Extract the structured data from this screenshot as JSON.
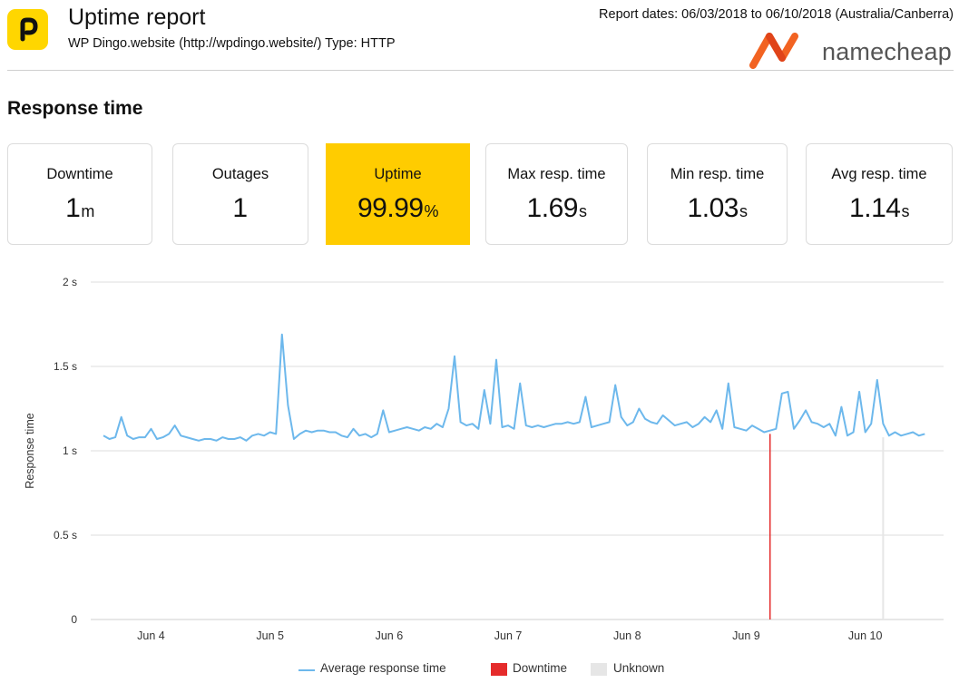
{
  "header": {
    "title": "Uptime report",
    "subtitle": "WP Dingo.website (http://wpdingo.website/) Type: HTTP",
    "report_dates": "Report dates: 06/03/2018 to 06/10/2018 (Australia/Canberra)",
    "brand_text": "namecheap"
  },
  "section": {
    "title": "Response time"
  },
  "stats": [
    {
      "label": "Downtime",
      "value": "1",
      "unit": "m"
    },
    {
      "label": "Outages",
      "value": "1",
      "unit": ""
    },
    {
      "label": "Uptime",
      "value": "99.99",
      "unit": "%"
    },
    {
      "label": "Max resp. time",
      "value": "1.69",
      "unit": "s"
    },
    {
      "label": "Min resp. time",
      "value": "1.03",
      "unit": "s"
    },
    {
      "label": "Avg resp. time",
      "value": "1.14",
      "unit": "s"
    }
  ],
  "colors": {
    "line": "#6db8ec",
    "downtime": "#e52b2b",
    "unknown": "#e6e6e6",
    "highlight": "#ffcc00",
    "grid": "#dddddd"
  },
  "chart_data": {
    "type": "line",
    "ylabel": "Response time",
    "y_ticks": [
      0,
      0.5,
      1,
      1.5,
      2
    ],
    "y_tick_labels": [
      "0",
      "0.5 s",
      "1 s",
      "1.5 s",
      "2 s"
    ],
    "ylim": [
      0,
      2
    ],
    "xlim": [
      3.55,
      10.55
    ],
    "x_ticks": [
      4,
      5,
      6,
      7,
      8,
      9,
      10
    ],
    "x_tick_labels": [
      "Jun 4",
      "Jun 5",
      "Jun 6",
      "Jun 7",
      "Jun 8",
      "Jun 9",
      "Jun 10"
    ],
    "grid": true,
    "legend_position": "bottom-center",
    "legend": [
      "Average response time",
      "Downtime",
      "Unknown"
    ],
    "downtime_x": [
      9.2
    ],
    "unknown_x": [
      10.15
    ],
    "series": [
      {
        "name": "Average response time",
        "x": [
          3.6,
          3.65,
          3.7,
          3.75,
          3.8,
          3.85,
          3.9,
          3.95,
          4.0,
          4.05,
          4.1,
          4.15,
          4.2,
          4.25,
          4.3,
          4.35,
          4.4,
          4.45,
          4.5,
          4.55,
          4.6,
          4.65,
          4.7,
          4.75,
          4.8,
          4.85,
          4.9,
          4.95,
          5.0,
          5.05,
          5.1,
          5.15,
          5.2,
          5.25,
          5.3,
          5.35,
          5.4,
          5.45,
          5.5,
          5.55,
          5.6,
          5.65,
          5.7,
          5.75,
          5.8,
          5.85,
          5.9,
          5.95,
          6.0,
          6.05,
          6.1,
          6.15,
          6.2,
          6.25,
          6.3,
          6.35,
          6.4,
          6.45,
          6.5,
          6.55,
          6.6,
          6.65,
          6.7,
          6.75,
          6.8,
          6.85,
          6.9,
          6.95,
          7.0,
          7.05,
          7.1,
          7.15,
          7.2,
          7.25,
          7.3,
          7.35,
          7.4,
          7.45,
          7.5,
          7.55,
          7.6,
          7.65,
          7.7,
          7.75,
          7.8,
          7.85,
          7.9,
          7.95,
          8.0,
          8.05,
          8.1,
          8.15,
          8.2,
          8.25,
          8.3,
          8.35,
          8.4,
          8.45,
          8.5,
          8.55,
          8.6,
          8.65,
          8.7,
          8.75,
          8.8,
          8.85,
          8.9,
          8.95,
          9.0,
          9.05,
          9.1,
          9.15,
          9.2,
          9.25,
          9.3,
          9.35,
          9.4,
          9.45,
          9.5,
          9.55,
          9.6,
          9.65,
          9.7,
          9.75,
          9.8,
          9.85,
          9.9,
          9.95,
          10.0,
          10.05,
          10.1,
          10.15,
          10.2,
          10.25,
          10.3,
          10.35,
          10.4,
          10.45,
          10.5
        ],
        "values": [
          1.09,
          1.07,
          1.08,
          1.2,
          1.09,
          1.07,
          1.08,
          1.08,
          1.13,
          1.07,
          1.08,
          1.1,
          1.15,
          1.09,
          1.08,
          1.07,
          1.06,
          1.07,
          1.07,
          1.06,
          1.08,
          1.07,
          1.07,
          1.08,
          1.06,
          1.09,
          1.1,
          1.09,
          1.11,
          1.1,
          1.69,
          1.27,
          1.07,
          1.1,
          1.12,
          1.11,
          1.12,
          1.12,
          1.11,
          1.11,
          1.09,
          1.08,
          1.13,
          1.09,
          1.1,
          1.08,
          1.1,
          1.24,
          1.11,
          1.12,
          1.13,
          1.14,
          1.13,
          1.12,
          1.14,
          1.13,
          1.16,
          1.14,
          1.25,
          1.56,
          1.17,
          1.15,
          1.16,
          1.13,
          1.36,
          1.16,
          1.54,
          1.14,
          1.15,
          1.13,
          1.4,
          1.15,
          1.14,
          1.15,
          1.14,
          1.15,
          1.16,
          1.16,
          1.17,
          1.16,
          1.17,
          1.32,
          1.14,
          1.15,
          1.16,
          1.17,
          1.39,
          1.2,
          1.15,
          1.17,
          1.25,
          1.19,
          1.17,
          1.16,
          1.21,
          1.18,
          1.15,
          1.16,
          1.17,
          1.14,
          1.16,
          1.2,
          1.17,
          1.24,
          1.13,
          1.4,
          1.14,
          1.13,
          1.12,
          1.15,
          1.13,
          1.11,
          1.12,
          1.13,
          1.34,
          1.35,
          1.13,
          1.18,
          1.24,
          1.17,
          1.16,
          1.14,
          1.16,
          1.09,
          1.26,
          1.09,
          1.11,
          1.35,
          1.11,
          1.16,
          1.42,
          1.16,
          1.09,
          1.11,
          1.09,
          1.1,
          1.11,
          1.09,
          1.1
        ]
      }
    ]
  }
}
